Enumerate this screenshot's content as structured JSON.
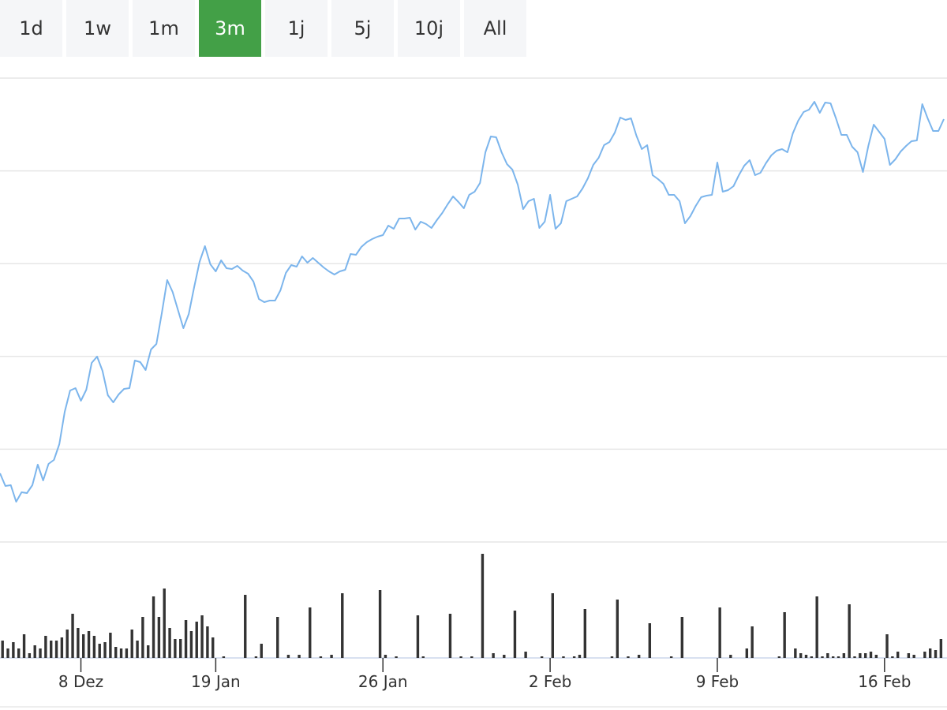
{
  "buttons": [
    "1d",
    "1w",
    "1m",
    "3m",
    "1j",
    "5j",
    "10j",
    "All"
  ],
  "active_button": 3,
  "chart_data": {
    "type": "line",
    "color": "#7cb5ec",
    "volume_color": "#333333",
    "grid": true,
    "ylim": [
      0,
      588
    ],
    "yticks": [
      0,
      117.6,
      235.2,
      352.8,
      470.4,
      588
    ],
    "volume_ylim": [
      0,
      147
    ],
    "categories": [
      null,
      null,
      null,
      null,
      null,
      null,
      null,
      null,
      null,
      null,
      null,
      null,
      null,
      null,
      null,
      "8 Dez",
      null,
      null,
      null,
      null,
      null,
      null,
      null,
      null,
      null,
      null,
      null,
      null,
      null,
      null,
      null,
      null,
      null,
      null,
      null,
      null,
      null,
      null,
      null,
      null,
      "19 Jan",
      null,
      null,
      null,
      null,
      null,
      null,
      null,
      null,
      null,
      null,
      null,
      null,
      null,
      null,
      null,
      null,
      null,
      null,
      null,
      null,
      null,
      null,
      null,
      null,
      null,
      null,
      null,
      null,
      null,
      null,
      "26 Jan",
      null,
      null,
      null,
      null,
      null,
      null,
      null,
      null,
      null,
      null,
      null,
      null,
      null,
      null,
      null,
      null,
      null,
      null,
      null,
      null,
      null,
      null,
      null,
      null,
      null,
      null,
      null,
      null,
      null,
      null,
      "2 Feb",
      null,
      null,
      null,
      null,
      null,
      null,
      null,
      null,
      null,
      null,
      null,
      null,
      null,
      null,
      null,
      null,
      null,
      null,
      null,
      null,
      null,
      null,
      null,
      null,
      null,
      null,
      null,
      null,
      null,
      null,
      "9 Feb",
      null,
      null,
      null,
      null,
      null,
      null,
      null,
      null,
      null,
      null,
      null,
      null,
      null,
      null,
      null,
      null,
      null,
      null,
      null,
      null,
      null,
      null,
      null,
      null,
      null,
      null,
      null,
      null,
      null,
      null,
      "16 Feb",
      null,
      null,
      null,
      null,
      null,
      null,
      null,
      null,
      null,
      null,
      null
    ],
    "values": [
      87,
      71,
      72,
      51,
      63,
      62,
      72,
      98,
      78,
      99,
      104,
      124,
      165,
      192,
      195,
      179,
      193,
      227,
      235,
      217,
      186,
      177,
      187,
      194,
      195,
      230,
      228,
      218,
      244,
      251,
      290,
      332,
      317,
      294,
      271,
      289,
      323,
      355,
      375,
      352,
      343,
      357,
      347,
      346,
      350,
      344,
      340,
      330,
      308,
      304,
      306,
      306,
      319,
      341,
      351,
      349,
      362,
      354,
      360,
      354,
      348,
      343,
      339,
      343,
      345,
      365,
      364,
      374,
      380,
      384,
      387,
      389,
      401,
      397,
      410,
      410,
      411,
      396,
      406,
      403,
      398,
      408,
      417,
      428,
      438,
      431,
      423,
      440,
      444,
      455,
      494,
      514,
      513,
      494,
      479,
      472,
      453,
      422,
      432,
      435,
      398,
      406,
      440,
      397,
      404,
      432,
      435,
      438,
      448,
      461,
      478,
      487,
      503,
      507,
      519,
      538,
      535,
      537,
      515,
      498,
      503,
      465,
      460,
      454,
      440,
      440,
      432,
      404,
      413,
      426,
      437,
      439,
      440,
      481,
      444,
      446,
      451,
      465,
      477,
      484,
      465,
      468,
      480,
      490,
      496,
      498,
      494,
      518,
      534,
      545,
      548,
      558,
      544,
      557,
      556,
      537,
      516,
      516,
      501,
      494,
      469,
      502,
      529,
      520,
      511,
      478,
      485,
      495,
      502,
      508,
      509,
      555,
      537,
      521,
      521,
      536
    ],
    "volume": [
      22,
      12,
      20,
      12,
      30,
      6,
      16,
      12,
      28,
      22,
      22,
      26,
      36,
      56,
      38,
      30,
      34,
      28,
      18,
      20,
      32,
      14,
      12,
      12,
      36,
      22,
      52,
      16,
      78,
      52,
      88,
      38,
      24,
      24,
      48,
      34,
      46,
      54,
      40,
      26,
      0,
      2,
      0,
      0,
      0,
      80,
      0,
      2,
      18,
      0,
      0,
      52,
      0,
      4,
      0,
      4,
      0,
      64,
      0,
      2,
      0,
      4,
      0,
      82,
      0,
      0,
      0,
      0,
      0,
      0,
      86,
      4,
      0,
      2,
      0,
      0,
      0,
      54,
      2,
      0,
      0,
      0,
      0,
      56,
      0,
      2,
      0,
      2,
      0,
      132,
      0,
      6,
      0,
      4,
      0,
      60,
      0,
      8,
      0,
      0,
      2,
      0,
      82,
      0,
      2,
      0,
      2,
      4,
      62,
      0,
      0,
      0,
      0,
      2,
      74,
      0,
      2,
      0,
      4,
      0,
      44,
      0,
      0,
      0,
      2,
      0,
      52,
      0,
      0,
      0,
      0,
      0,
      0,
      64,
      0,
      4,
      0,
      0,
      12,
      40,
      0,
      0,
      0,
      0,
      2,
      58,
      0,
      12,
      6,
      4,
      2,
      78,
      2,
      6,
      2,
      2,
      6,
      68,
      2,
      6,
      6,
      8,
      4,
      0,
      30,
      2,
      8,
      0,
      6,
      4,
      0,
      8,
      12,
      10,
      24,
      0
    ]
  }
}
